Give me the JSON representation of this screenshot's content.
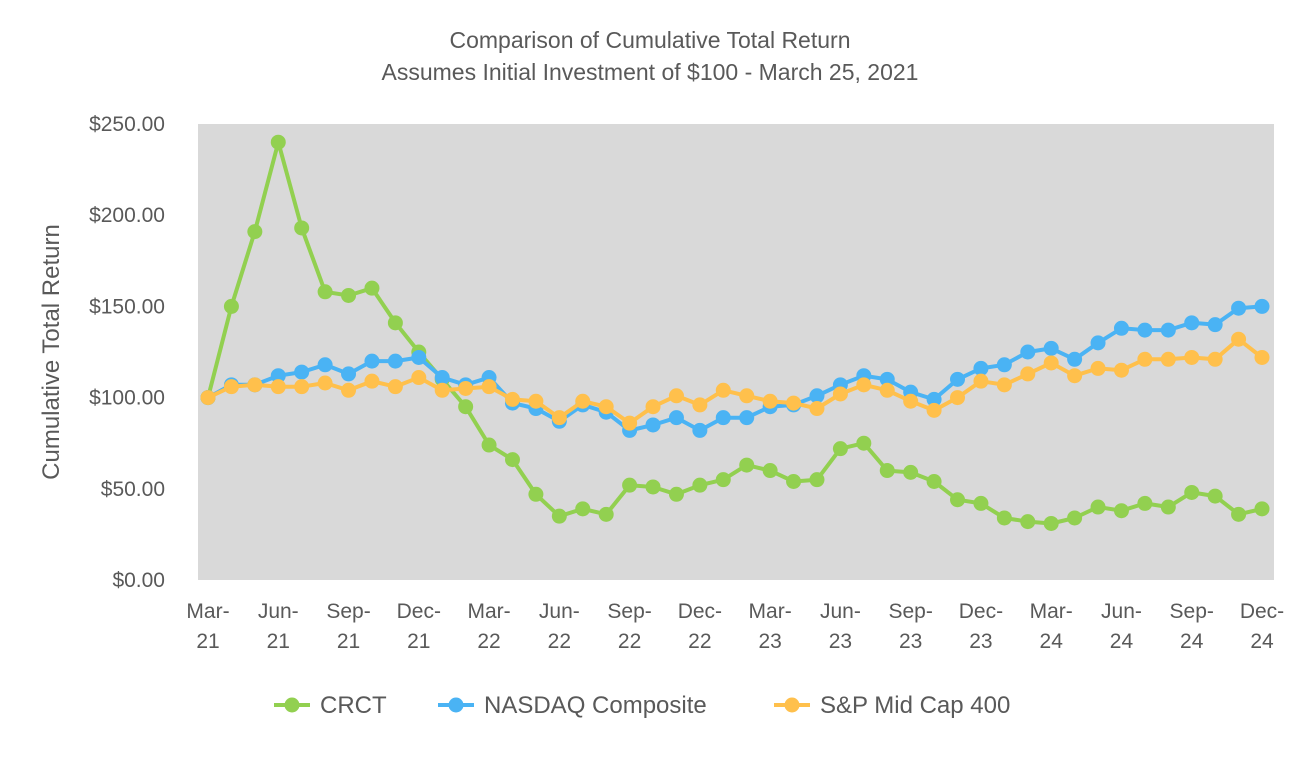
{
  "chart_data": {
    "type": "line",
    "title": "Comparison of Cumulative Total Return",
    "subtitle": "Assumes Initial Investment of $100 - March 25, 2021",
    "xlabel": "",
    "ylabel": "Cumulative Total Return",
    "ylim": [
      0,
      250
    ],
    "y_ticks": [
      {
        "value": 0,
        "label": "$0.00"
      },
      {
        "value": 50,
        "label": "$50.00"
      },
      {
        "value": 100,
        "label": "$100.00"
      },
      {
        "value": 150,
        "label": "$150.00"
      },
      {
        "value": 200,
        "label": "$200.00"
      },
      {
        "value": 250,
        "label": "$250.00"
      }
    ],
    "x_ticks": [
      {
        "index": 0,
        "line1": "Mar-",
        "line2": "21"
      },
      {
        "index": 3,
        "line1": "Jun-",
        "line2": "21"
      },
      {
        "index": 6,
        "line1": "Sep-",
        "line2": "21"
      },
      {
        "index": 9,
        "line1": "Dec-",
        "line2": "21"
      },
      {
        "index": 12,
        "line1": "Mar-",
        "line2": "22"
      },
      {
        "index": 15,
        "line1": "Jun-",
        "line2": "22"
      },
      {
        "index": 18,
        "line1": "Sep-",
        "line2": "22"
      },
      {
        "index": 21,
        "line1": "Dec-",
        "line2": "22"
      },
      {
        "index": 24,
        "line1": "Mar-",
        "line2": "23"
      },
      {
        "index": 27,
        "line1": "Jun-",
        "line2": "23"
      },
      {
        "index": 30,
        "line1": "Sep-",
        "line2": "23"
      },
      {
        "index": 33,
        "line1": "Dec-",
        "line2": "23"
      },
      {
        "index": 36,
        "line1": "Mar-",
        "line2": "24"
      },
      {
        "index": 39,
        "line1": "Jun-",
        "line2": "24"
      },
      {
        "index": 42,
        "line1": "Sep-",
        "line2": "24"
      },
      {
        "index": 45,
        "line1": "Dec-",
        "line2": "24"
      }
    ],
    "n_points": 46,
    "grid": false,
    "legend_position": "bottom",
    "plot_background": "#d9d9d9",
    "series": [
      {
        "name": "CRCT",
        "color": "#92d050",
        "values": [
          100,
          150,
          191,
          240,
          193,
          158,
          156,
          160,
          141,
          125,
          110,
          95,
          74,
          66,
          47,
          35,
          39,
          36,
          52,
          51,
          47,
          52,
          55,
          63,
          60,
          54,
          55,
          72,
          75,
          60,
          59,
          54,
          44,
          42,
          34,
          32,
          31,
          34,
          40,
          38,
          42,
          40,
          48,
          46,
          36,
          39
        ]
      },
      {
        "name": "NASDAQ Composite",
        "color": "#4ab3f4",
        "values": [
          100,
          107,
          107,
          112,
          114,
          118,
          113,
          120,
          120,
          122,
          111,
          107,
          111,
          97,
          94,
          87,
          96,
          92,
          82,
          85,
          89,
          82,
          89,
          89,
          95,
          96,
          101,
          107,
          112,
          110,
          103,
          99,
          110,
          116,
          118,
          125,
          127,
          121,
          130,
          138,
          137,
          137,
          141,
          140,
          149,
          150
        ]
      },
      {
        "name": "S&P Mid Cap 400",
        "color": "#ffc04c",
        "values": [
          100,
          106,
          107,
          106,
          106,
          108,
          104,
          109,
          106,
          111,
          104,
          105,
          106,
          99,
          98,
          89,
          98,
          95,
          86,
          95,
          101,
          96,
          104,
          101,
          98,
          97,
          94,
          102,
          107,
          104,
          98,
          93,
          100,
          109,
          107,
          113,
          119,
          112,
          116,
          115,
          121,
          121,
          122,
          121,
          132,
          122
        ]
      }
    ]
  }
}
